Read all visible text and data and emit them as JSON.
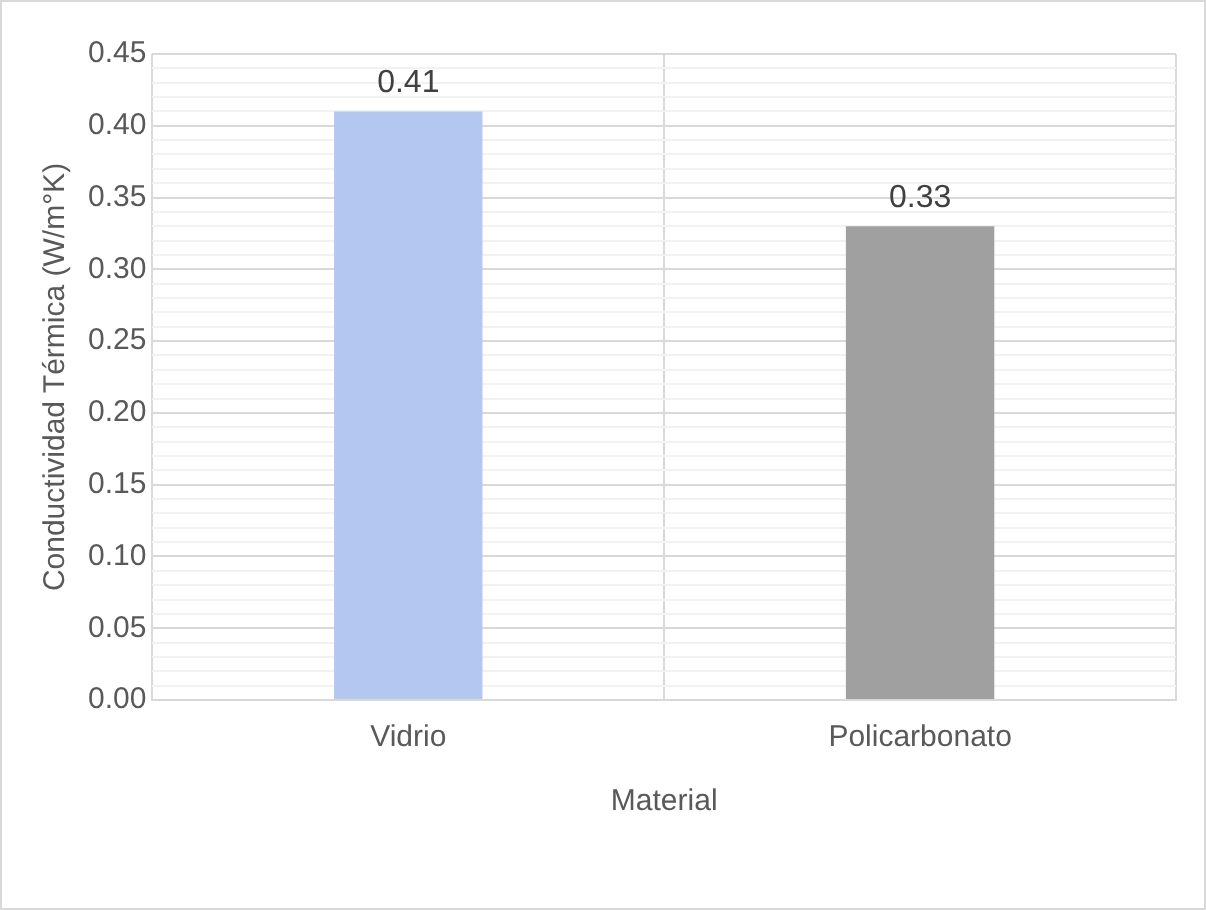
{
  "chart_data": {
    "type": "bar",
    "xlabel": "Material",
    "ylabel": "Conductividad Térmica (W/m°K)",
    "categories": [
      "Vidrio",
      "Policarbonato"
    ],
    "values": [
      0.41,
      0.33
    ],
    "colors": [
      "#b4c7f0",
      "#a0a0a0"
    ],
    "ylim": [
      0,
      0.45
    ],
    "yticks": [
      {
        "value": 0,
        "label": "0.00"
      },
      {
        "value": 0.01,
        "label": null
      },
      {
        "value": 0.02,
        "label": null
      },
      {
        "value": 0.03,
        "label": null
      },
      {
        "value": 0.04,
        "label": null
      },
      {
        "value": 0.05,
        "label": "0.05"
      },
      {
        "value": 0.06,
        "label": null
      },
      {
        "value": 0.07,
        "label": null
      },
      {
        "value": 0.08,
        "label": null
      },
      {
        "value": 0.09,
        "label": null
      },
      {
        "value": 0.1,
        "label": "0.10"
      },
      {
        "value": 0.11,
        "label": null
      },
      {
        "value": 0.12,
        "label": null
      },
      {
        "value": 0.13,
        "label": null
      },
      {
        "value": 0.14,
        "label": null
      },
      {
        "value": 0.15,
        "label": "0.15"
      },
      {
        "value": 0.16,
        "label": null
      },
      {
        "value": 0.17,
        "label": null
      },
      {
        "value": 0.18,
        "label": null
      },
      {
        "value": 0.19,
        "label": null
      },
      {
        "value": 0.2,
        "label": "0.20"
      },
      {
        "value": 0.21,
        "label": null
      },
      {
        "value": 0.22,
        "label": null
      },
      {
        "value": 0.23,
        "label": null
      },
      {
        "value": 0.24,
        "label": null
      },
      {
        "value": 0.25,
        "label": "0.25"
      },
      {
        "value": 0.26,
        "label": null
      },
      {
        "value": 0.27,
        "label": null
      },
      {
        "value": 0.28,
        "label": null
      },
      {
        "value": 0.29,
        "label": null
      },
      {
        "value": 0.3,
        "label": "0.30"
      },
      {
        "value": 0.31,
        "label": null
      },
      {
        "value": 0.32,
        "label": null
      },
      {
        "value": 0.33,
        "label": null
      },
      {
        "value": 0.34,
        "label": null
      },
      {
        "value": 0.35,
        "label": "0.35"
      },
      {
        "value": 0.36,
        "label": null
      },
      {
        "value": 0.37,
        "label": null
      },
      {
        "value": 0.38,
        "label": null
      },
      {
        "value": 0.39,
        "label": null
      },
      {
        "value": 0.4,
        "label": "0.40"
      },
      {
        "value": 0.41,
        "label": null
      },
      {
        "value": 0.42,
        "label": null
      },
      {
        "value": 0.43,
        "label": null
      },
      {
        "value": 0.44,
        "label": null
      },
      {
        "value": 0.45,
        "label": "0.45"
      }
    ],
    "grid": true,
    "data_labels": true
  }
}
